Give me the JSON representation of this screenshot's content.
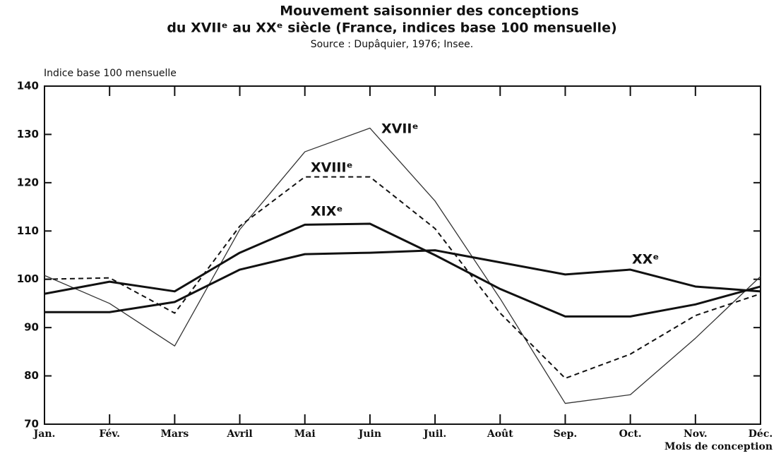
{
  "chart_data": {
    "type": "line",
    "title": "Mouvement saisonnier des conceptions",
    "subtitle": "du XVIIᵉ au XXᵉ siècle (France, indices base 100 mensuelle)",
    "source": "Source : Dupâquier, 1976; Insee.",
    "y_label": "Indice base 100 mensuelle",
    "x_label": "Mois de conception",
    "categories": [
      "Jan.",
      "Fév.",
      "Mars",
      "Avril",
      "Mai",
      "Juin",
      "Juil.",
      "Août",
      "Sep.",
      "Oct.",
      "Nov.",
      "Déc."
    ],
    "ylim": [
      70,
      140
    ],
    "yticks": [
      70,
      80,
      90,
      100,
      110,
      120,
      130,
      140
    ],
    "grid": false,
    "series": [
      {
        "name": "XVIIᵉ",
        "color": "#333333",
        "line_style": "solid",
        "line_width": 1.3,
        "values": [
          100.8,
          95,
          86.2,
          110.3,
          126.4,
          131.3,
          116.2,
          96,
          74.3,
          76.1,
          87.8,
          100.6
        ]
      },
      {
        "name": "XVIIIᵉ",
        "color": "#111111",
        "line_style": "dashed",
        "line_width": 2,
        "values": [
          100,
          100.3,
          93,
          111,
          121.2,
          121.2,
          110.5,
          93,
          79.5,
          84.5,
          92.5,
          97
        ]
      },
      {
        "name": "XIXᵉ",
        "color": "#111111",
        "line_style": "solid",
        "line_width": 3,
        "values": [
          97,
          99.5,
          97.5,
          105.5,
          111.3,
          111.5,
          105,
          98,
          92.3,
          92.3,
          94.8,
          98.5
        ]
      },
      {
        "name": "XXᵉ",
        "color": "#111111",
        "line_style": "solid",
        "line_width": 3,
        "values": [
          93.2,
          93.2,
          95.3,
          102,
          105.2,
          105.5,
          106,
          103.5,
          101,
          102,
          98.5,
          97.5
        ]
      }
    ]
  }
}
